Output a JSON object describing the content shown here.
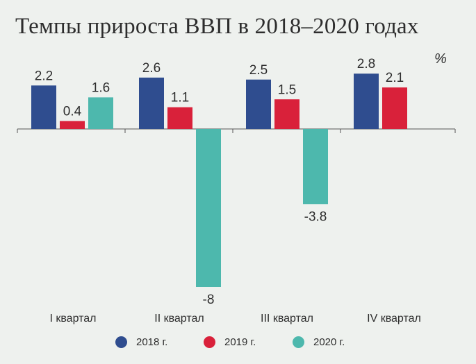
{
  "chart_data": {
    "type": "bar",
    "title": "Темпы прироста ВВП в 2018–2020 годах",
    "unit": "%",
    "categories": [
      "I квартал",
      "II квартал",
      "III квартал",
      "IV квартал"
    ],
    "series": [
      {
        "name": "2018 г.",
        "color": "#2f4d8f",
        "values": [
          2.2,
          2.6,
          2.5,
          2.8
        ]
      },
      {
        "name": "2019 г.",
        "color": "#d9213a",
        "values": [
          0.4,
          1.1,
          1.5,
          2.1
        ]
      },
      {
        "name": "2020 г.",
        "color": "#4db8ad",
        "values": [
          1.6,
          -8,
          -3.8,
          null
        ]
      }
    ],
    "value_labels": [
      [
        "2.2",
        "2.6",
        "2.5",
        "2.8"
      ],
      [
        "0.4",
        "1.1",
        "1.5",
        "2.1"
      ],
      [
        "1.6",
        "-8",
        "-3.8",
        ""
      ]
    ],
    "ylim": [
      -8,
      2.8
    ],
    "grid": false,
    "legend_position": "bottom"
  }
}
